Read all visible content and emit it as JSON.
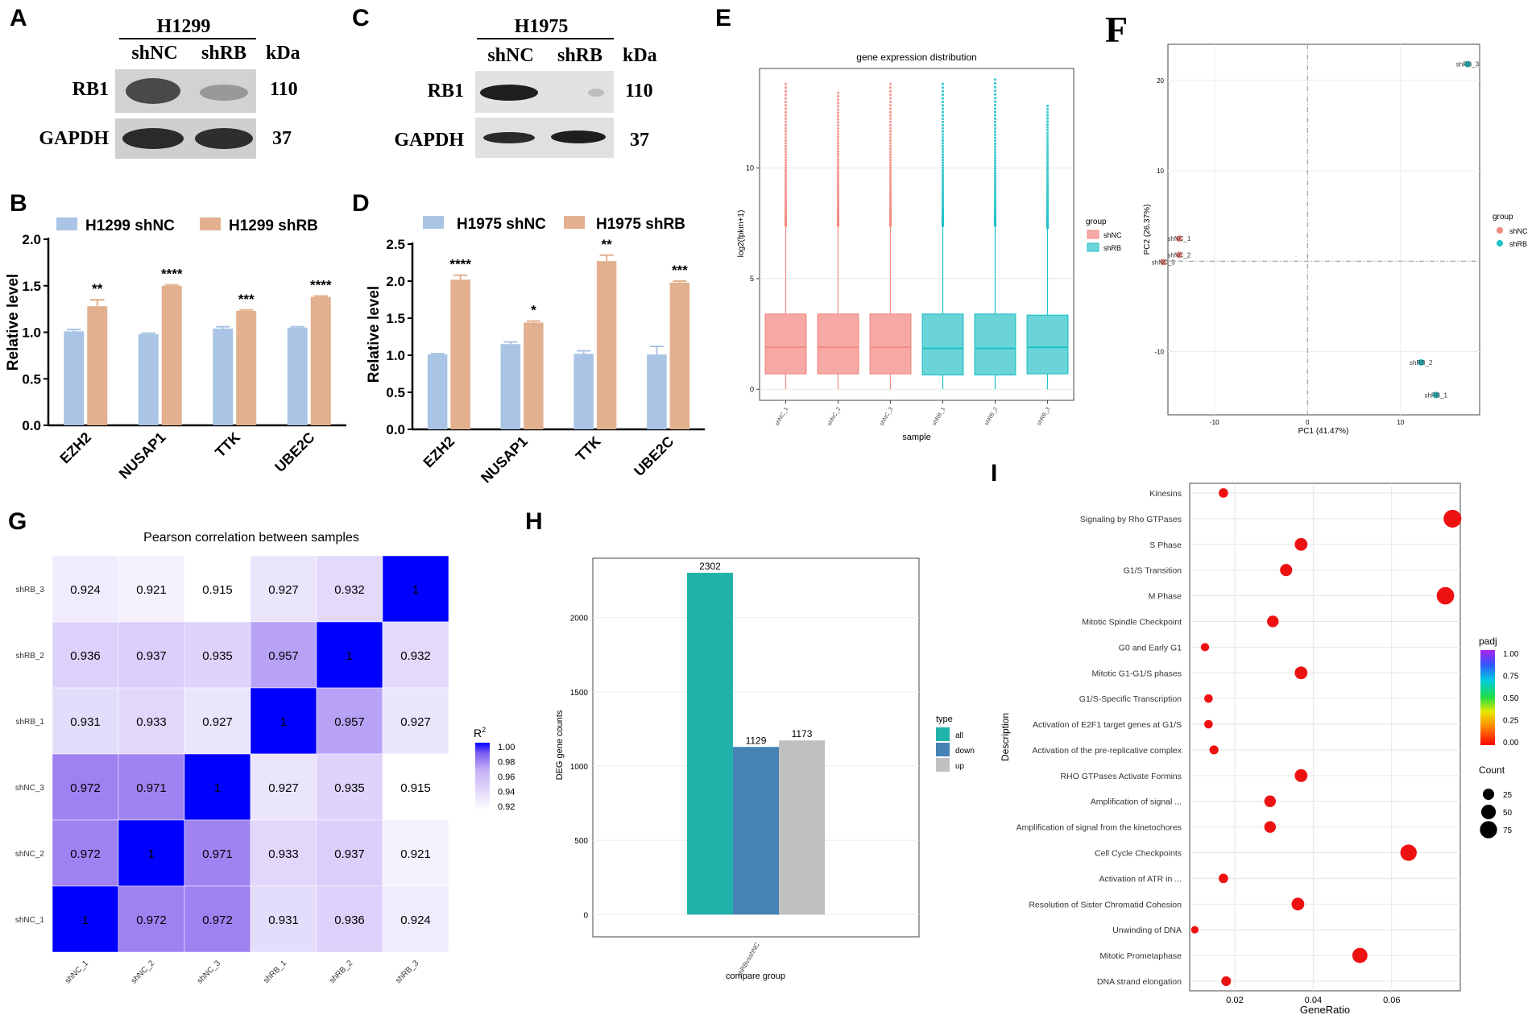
{
  "figure": "multi-panel scientific figure",
  "colors": {
    "light_blue": "#a9c4e4",
    "tan": "#e2b08e",
    "shNC_pink": "#f08b82",
    "shRB_teal": "#1fc2c8",
    "box_pink": "#f6a8a4",
    "box_teal": "#6bd4d8",
    "heat_low": "#ffffff",
    "heat_high": "#0000ff",
    "deg_all": "#20b2aa",
    "deg_down": "#4682b4",
    "deg_up": "#c0c0c0",
    "dot_red": "#ee1111"
  },
  "panels": {
    "A": {
      "letter": "A",
      "cell_line": "H1299",
      "lanes": [
        "shNC",
        "shRB"
      ],
      "kda_label": "kDa",
      "rows": [
        {
          "protein": "RB1",
          "kda": "110"
        },
        {
          "protein": "GAPDH",
          "kda": "37"
        }
      ]
    },
    "C": {
      "letter": "C",
      "cell_line": "H1975",
      "lanes": [
        "shNC",
        "shRB"
      ],
      "kda_label": "kDa",
      "rows": [
        {
          "protein": "RB1",
          "kda": "110"
        },
        {
          "protein": "GAPDH",
          "kda": "37"
        }
      ]
    }
  },
  "chart_data": [
    {
      "panel": "B",
      "type": "bar",
      "legend": [
        "H1299 shNC",
        "H1299 shRB"
      ],
      "ylabel": "Relative level",
      "ylim": [
        0,
        2.0
      ],
      "yticks": [
        "0.0",
        "0.5",
        "1.0",
        "1.5",
        "2.0"
      ],
      "categories": [
        "EZH2",
        "NUSAP1",
        "TTK",
        "UBE2C"
      ],
      "series": [
        {
          "name": "H1299 shNC",
          "values": [
            1.01,
            0.98,
            1.04,
            1.05
          ],
          "errors": [
            0.02,
            0.01,
            0.02,
            0.01
          ]
        },
        {
          "name": "H1299 shRB",
          "values": [
            1.28,
            1.5,
            1.23,
            1.38
          ],
          "errors": [
            0.07,
            0.01,
            0.01,
            0.01
          ]
        }
      ],
      "significance": [
        "**",
        "****",
        "***",
        "****"
      ]
    },
    {
      "panel": "D",
      "type": "bar",
      "legend": [
        "H1975 shNC",
        "H1975 shRB"
      ],
      "ylabel": "Relative level",
      "ylim": [
        0,
        2.5
      ],
      "yticks": [
        "0.0",
        "0.5",
        "1.0",
        "1.5",
        "2.0",
        "2.5"
      ],
      "categories": [
        "EZH2",
        "NUSAP1",
        "TTK",
        "UBE2C"
      ],
      "series": [
        {
          "name": "H1975 shNC",
          "values": [
            1.01,
            1.15,
            1.02,
            1.01
          ],
          "errors": [
            0.01,
            0.03,
            0.04,
            0.11
          ]
        },
        {
          "name": "H1975 shRB",
          "values": [
            2.02,
            1.44,
            2.27,
            1.98
          ],
          "errors": [
            0.06,
            0.02,
            0.08,
            0.02
          ]
        }
      ],
      "significance": [
        "****",
        "*",
        "**",
        "***"
      ]
    },
    {
      "panel": "E",
      "type": "box",
      "title": "gene expression distribution",
      "xlabel": "sample",
      "ylabel": "log2(fpkm+1)",
      "ylim": [
        -0.5,
        14.5
      ],
      "yticks": [
        "0",
        "5",
        "10"
      ],
      "samples": [
        "shNC_1",
        "shNC_2",
        "shNC_3",
        "shRB_1",
        "shRB_2",
        "shRB_3"
      ],
      "groups": [
        "shNC",
        "shNC",
        "shNC",
        "shRB",
        "shRB",
        "shRB"
      ],
      "stats": [
        {
          "q1": 0.7,
          "median": 1.9,
          "q3": 3.4,
          "whisk_hi": 7.4,
          "max": 13.8
        },
        {
          "q1": 0.7,
          "median": 1.9,
          "q3": 3.4,
          "whisk_hi": 7.4,
          "max": 13.4
        },
        {
          "q1": 0.7,
          "median": 1.9,
          "q3": 3.4,
          "whisk_hi": 7.4,
          "max": 13.8
        },
        {
          "q1": 0.65,
          "median": 1.85,
          "q3": 3.4,
          "whisk_hi": 7.4,
          "max": 13.8
        },
        {
          "q1": 0.65,
          "median": 1.85,
          "q3": 3.4,
          "whisk_hi": 7.4,
          "max": 14.0
        },
        {
          "q1": 0.7,
          "median": 1.9,
          "q3": 3.35,
          "whisk_hi": 7.3,
          "max": 12.8
        }
      ],
      "legend_title": "group",
      "legend": [
        "shNC",
        "shRB"
      ]
    },
    {
      "panel": "F",
      "type": "scatter",
      "xlabel": "PC1 (41.47%)",
      "ylabel": "PC2 (26.37%)",
      "xlim": [
        -15,
        18.5
      ],
      "ylim": [
        -17,
        24
      ],
      "xticks": [
        -10,
        0,
        10
      ],
      "yticks": [
        -10,
        0,
        10,
        20
      ],
      "points": [
        {
          "label": "shNC_1",
          "x": -13.8,
          "y": 2.5,
          "group": "shNC"
        },
        {
          "label": "shNC_2",
          "x": -13.8,
          "y": 0.7,
          "group": "shNC"
        },
        {
          "label": "shNC_3",
          "x": -15.5,
          "y": -0.1,
          "group": "shNC"
        },
        {
          "label": "shRB_1",
          "x": 13.8,
          "y": -14.8,
          "group": "shRB"
        },
        {
          "label": "shRB_2",
          "x": 12.2,
          "y": -11.2,
          "group": "shRB"
        },
        {
          "label": "shRB_3",
          "x": 17.2,
          "y": 21.8,
          "group": "shRB"
        }
      ],
      "legend_title": "group",
      "legend": [
        "shNC",
        "shRB"
      ]
    },
    {
      "panel": "G",
      "type": "heatmap",
      "title": "Pearson correlation between samples",
      "row_labels": [
        "shRB_3",
        "shRB_2",
        "shRB_1",
        "shNC_3",
        "shNC_2",
        "shNC_1"
      ],
      "col_labels": [
        "shNC_1",
        "shNC_2",
        "shNC_3",
        "shRB_1",
        "shRB_2",
        "shRB_3"
      ],
      "values": [
        [
          "0.924",
          "0.921",
          "0.915",
          "0.927",
          "0.932",
          "1"
        ],
        [
          "0.936",
          "0.937",
          "0.935",
          "0.957",
          "1",
          "0.932"
        ],
        [
          "0.931",
          "0.933",
          "0.927",
          "1",
          "0.957",
          "0.927"
        ],
        [
          "0.972",
          "0.971",
          "1",
          "0.927",
          "0.935",
          "0.915"
        ],
        [
          "0.972",
          "1",
          "0.971",
          "0.933",
          "0.937",
          "0.921"
        ],
        [
          "1",
          "0.972",
          "0.972",
          "0.931",
          "0.936",
          "0.924"
        ]
      ],
      "legend_title": "R",
      "legend_superscript": "2",
      "legend_ticks": [
        "1.00",
        "0.98",
        "0.96",
        "0.94",
        "0.92"
      ],
      "range": [
        0.915,
        1.0
      ]
    },
    {
      "panel": "H",
      "type": "bar",
      "xlabel": "compare group",
      "ylabel": "DEG gene counts",
      "category": "shRBvsshNC",
      "ylim": [
        0,
        2400
      ],
      "yticks": [
        0,
        500,
        1000,
        1500,
        2000
      ],
      "legend_title": "type",
      "series": [
        {
          "name": "all",
          "value": 2302
        },
        {
          "name": "down",
          "value": 1129
        },
        {
          "name": "up",
          "value": 1173
        }
      ]
    },
    {
      "panel": "I",
      "type": "scatter",
      "xlabel": "GeneRatio",
      "ylabel": "Description",
      "xlim": [
        0.0085,
        0.0775
      ],
      "xticks": [
        "0.02",
        "0.04",
        "0.06"
      ],
      "xtick_values": [
        0.02,
        0.04,
        0.06
      ],
      "terms": [
        {
          "label": "Kinesins",
          "ratio": 0.0171,
          "count": 15
        },
        {
          "label": "Signaling by Rho GTPases",
          "ratio": 0.0755,
          "count": 82
        },
        {
          "label": "S Phase",
          "ratio": 0.0369,
          "count": 35
        },
        {
          "label": "G1/S Transition",
          "ratio": 0.0331,
          "count": 31
        },
        {
          "label": "M Phase",
          "ratio": 0.0737,
          "count": 78
        },
        {
          "label": "Mitotic Spindle Checkpoint",
          "ratio": 0.0297,
          "count": 27
        },
        {
          "label": "G0 and Early G1",
          "ratio": 0.0124,
          "count": 10
        },
        {
          "label": "Mitotic G1-G1/S phases",
          "ratio": 0.0369,
          "count": 35
        },
        {
          "label": "G1/S-Specific Transcription",
          "ratio": 0.0133,
          "count": 11
        },
        {
          "label": "Activation of E2F1 target genes at G1/S",
          "ratio": 0.0133,
          "count": 11
        },
        {
          "label": "Activation of the pre-replicative complex",
          "ratio": 0.0147,
          "count": 13
        },
        {
          "label": "RHO GTPases Activate Formins",
          "ratio": 0.0369,
          "count": 35
        },
        {
          "label": "Amplification  of signal ...",
          "ratio": 0.029,
          "count": 27
        },
        {
          "label": "Amplification of signal from the kinetochores",
          "ratio": 0.029,
          "count": 27
        },
        {
          "label": "Cell Cycle Checkpoints",
          "ratio": 0.0643,
          "count": 67
        },
        {
          "label": "Activation of ATR in ...",
          "ratio": 0.0171,
          "count": 15
        },
        {
          "label": "Resolution of Sister Chromatid Cohesion",
          "ratio": 0.0361,
          "count": 35
        },
        {
          "label": "Unwinding of DNA",
          "ratio": 0.0098,
          "count": 7
        },
        {
          "label": "Mitotic Prometaphase",
          "ratio": 0.0519,
          "count": 55
        },
        {
          "label": "DNA strand elongation",
          "ratio": 0.0178,
          "count": 16
        }
      ],
      "padj_title": "padj",
      "padj_ticks": [
        "1.00",
        "0.75",
        "0.50",
        "0.25",
        "0.00"
      ],
      "count_title": "Count",
      "count_legend": [
        25,
        50,
        75
      ]
    }
  ],
  "panel_letters": {
    "A": "A",
    "B": "B",
    "C": "C",
    "D": "D",
    "E": "E",
    "F": "F",
    "G": "G",
    "H": "H",
    "I": "I"
  }
}
